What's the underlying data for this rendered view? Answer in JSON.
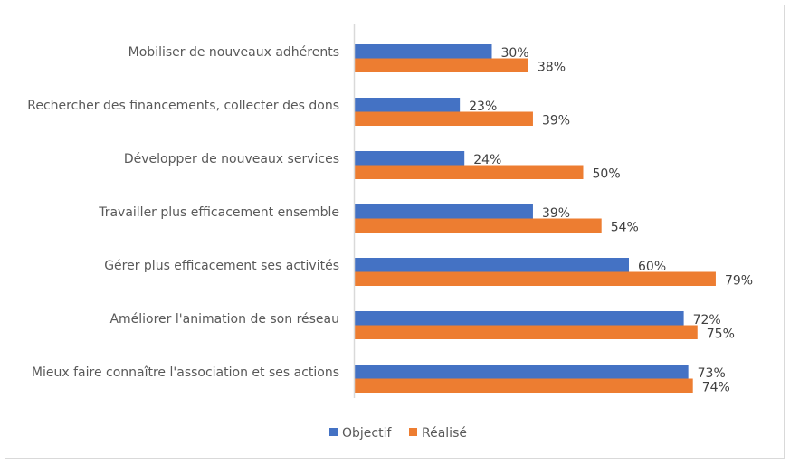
{
  "chart_data": {
    "type": "bar",
    "orientation": "horizontal",
    "categories": [
      "Mobiliser de nouveaux adhérents",
      "Rechercher des financements, collecter des dons",
      "Développer de nouveaux services",
      "Travailler plus efficacement ensemble",
      "Gérer plus efficacement ses activités",
      "Améliorer l'animation de son réseau",
      "Mieux faire connaître l'association et ses actions"
    ],
    "series": [
      {
        "name": "Objectif",
        "color": "#4472C4",
        "values": [
          30,
          23,
          24,
          39,
          60,
          72,
          73
        ],
        "labels": [
          "30%",
          "23%",
          "24%",
          "39%",
          "60%",
          "72%",
          "73%"
        ]
      },
      {
        "name": "Réalisé",
        "color": "#ED7D31",
        "values": [
          38,
          39,
          50,
          54,
          79,
          75,
          74
        ],
        "labels": [
          "38%",
          "39%",
          "50%",
          "54%",
          "79%",
          "75%",
          "74%"
        ]
      }
    ],
    "unit": "%",
    "xlim": [
      0,
      100
    ],
    "grid": false,
    "legend_position": "bottom"
  }
}
